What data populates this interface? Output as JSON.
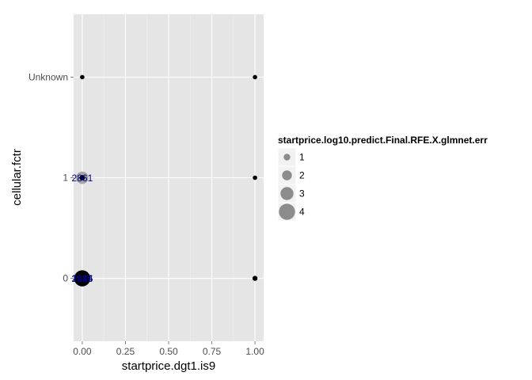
{
  "chart_data": {
    "type": "scatter",
    "xlabel": "startprice.dgt1.is9",
    "ylabel": "cellular.fctr",
    "x_ticks": [
      0,
      0.25,
      0.5,
      0.75,
      1
    ],
    "x_tick_labels": [
      "0.00",
      "0.25",
      "0.50",
      "0.75",
      "1.00"
    ],
    "xlim": [
      -0.05,
      1.05
    ],
    "y_categories": [
      "0",
      "1",
      "Unknown"
    ],
    "grid": true,
    "legend": {
      "title": "startprice.log10.predict.Final.RFE.X.glmnet.err",
      "position": "right",
      "entries": [
        {
          "label": "1",
          "value": 1
        },
        {
          "label": "2",
          "value": 2
        },
        {
          "label": "3",
          "value": 3
        },
        {
          "label": "4",
          "value": 4
        }
      ]
    },
    "points": [
      {
        "x": 0,
        "y": "Unknown",
        "err": 0.3,
        "color": "#000000"
      },
      {
        "x": 1,
        "y": "Unknown",
        "err": 0.3,
        "color": "#000000"
      },
      {
        "x": 0,
        "y": "1",
        "err": 2.8,
        "color": "#999999"
      },
      {
        "x": 0,
        "y": "1",
        "err": 0.6,
        "color": "#000000"
      },
      {
        "x": 1,
        "y": "1",
        "err": 0.3,
        "color": "#000000"
      },
      {
        "x": 0,
        "y": "0",
        "err": 4.0,
        "color": "#000000"
      },
      {
        "x": 0,
        "y": "0",
        "err": 3.0,
        "color": "#000000"
      },
      {
        "x": 1,
        "y": "0",
        "err": 0.5,
        "color": "#000000"
      },
      {
        "x": 1,
        "y": "0",
        "err": 0.3,
        "color": "#000000"
      }
    ],
    "point_labels": [
      {
        "x": 0,
        "y": "1",
        "text": "2861"
      },
      {
        "x": 0,
        "y": "0",
        "text": "2036"
      },
      {
        "x": 0,
        "y": "0",
        "text": "1925"
      },
      {
        "x": 0,
        "y": "0",
        "text": "2144"
      }
    ]
  }
}
